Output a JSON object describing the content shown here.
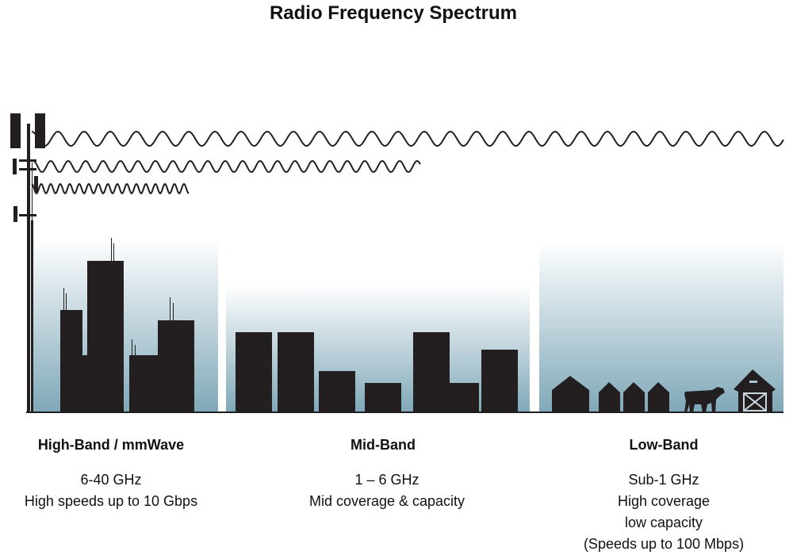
{
  "title": "Radio Frequency Spectrum",
  "colors": {
    "silhouette": "#231f20",
    "sky_bottom": "#7fa8b8",
    "sky_top": "#ffffff"
  },
  "icons": [
    "cell-tower-icon",
    "city-buildings-icon",
    "houses-icon",
    "cow-icon",
    "barn-icon"
  ],
  "bands": [
    {
      "name": "High-Band / mmWave",
      "lines": [
        "6-40 GHz",
        "High speeds up to 10 Gbps"
      ]
    },
    {
      "name": "Mid-Band",
      "lines": [
        "1 – 6 GHz",
        "Mid coverage & capacity"
      ]
    },
    {
      "name": "Low-Band",
      "lines": [
        "Sub-1 GHz",
        "High coverage",
        "low capacity",
        "(Speeds up to 100 Mbps)"
      ]
    }
  ]
}
